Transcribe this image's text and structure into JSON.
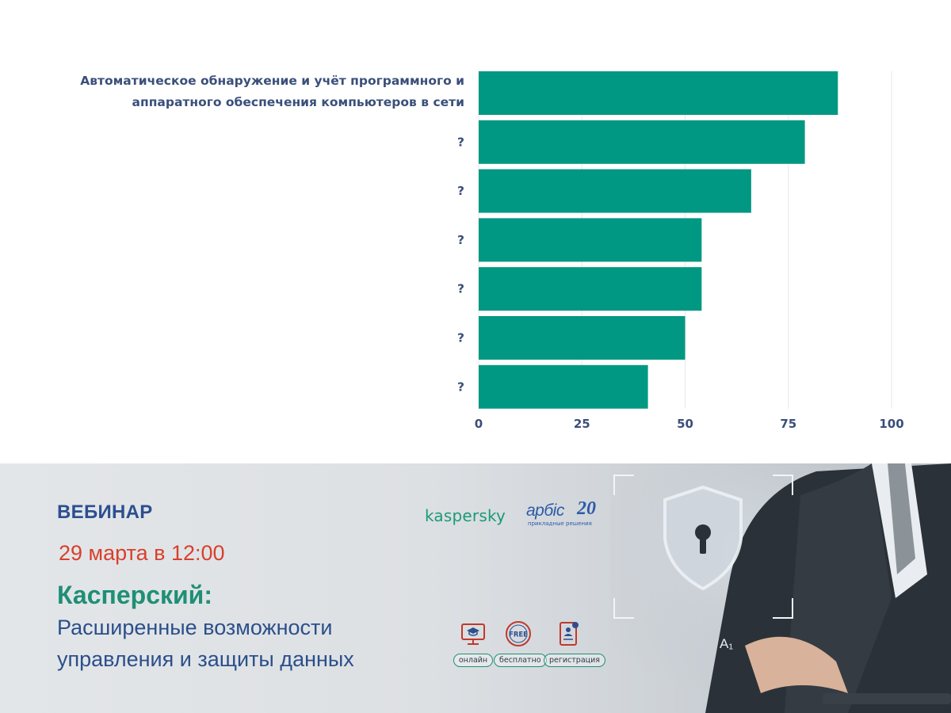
{
  "chart_data": {
    "type": "bar",
    "orientation": "horizontal",
    "categories": [
      "Автоматическое обнаружение и учёт программного и аппаратного обеспечения компьютеров в сети",
      "?",
      "?",
      "?",
      "?",
      "?",
      "?"
    ],
    "values": [
      87,
      79,
      66,
      54,
      54,
      50,
      41
    ],
    "xlim": [
      0,
      100
    ],
    "xticks": [
      "0",
      "25",
      "50",
      "75",
      "100"
    ],
    "title": "",
    "xlabel": "",
    "ylabel": "",
    "grid": true,
    "bar_color": "#009882"
  },
  "chart_labels": {
    "first_line1": "Автоматическое обнаружение и учёт программного и",
    "first_line2": "аппаратного обеспечения компьютеров в сети"
  },
  "banner": {
    "label": "ВЕБИНАР",
    "date": "29 марта в 12:00",
    "title": "Касперский:",
    "subtitle_line1": "Расширенные возможности",
    "subtitle_line2": "управления и защиты данных",
    "logo_kaspersky": "kaspersky",
    "logo_arbis": "арбіс",
    "logo_arbis_years": "20",
    "logo_arbis_tagline": "прикладные решения",
    "features": [
      {
        "label": "онлайн",
        "icon": "monitor-graduation-icon"
      },
      {
        "label": "бесплатно",
        "icon": "free-badge-icon",
        "badge": "FREE"
      },
      {
        "label": "регистрация",
        "icon": "registration-form-icon"
      }
    ],
    "photo_overlay_text": "A₁",
    "colors": {
      "accent_green": "#1f8f76",
      "navy": "#2c4f8f",
      "red": "#d9402c"
    }
  }
}
